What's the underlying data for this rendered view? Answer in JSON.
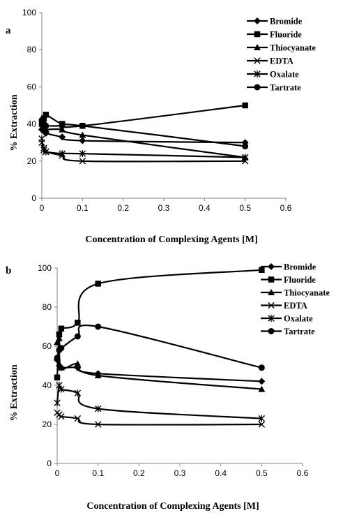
{
  "chart_data": [
    {
      "type": "line",
      "panel_label": "a",
      "xlabel": "Concentration of Complexing Agents [M]",
      "ylabel": "% Extraction",
      "xlim": [
        0,
        0.6
      ],
      "ylim": [
        0,
        100
      ],
      "xticks": [
        0,
        0.1,
        0.2,
        0.3,
        0.4,
        0.5,
        0.6
      ],
      "xtick_labels": [
        "0",
        "0.1",
        "0.2",
        "0.3",
        "0.4",
        "0.5",
        "0.6"
      ],
      "yticks": [
        0,
        20,
        40,
        60,
        80,
        100
      ],
      "ytick_labels": [
        "0",
        "20",
        "40",
        "60",
        "80",
        "100"
      ],
      "grid": false,
      "legend_position": "top-right",
      "series": [
        {
          "name": "Bromide",
          "marker": "diamond",
          "x": [
            0,
            0.005,
            0.01,
            0.05,
            0.1,
            0.5
          ],
          "y": [
            37,
            36,
            35,
            33,
            31,
            30
          ]
        },
        {
          "name": "Fluoride",
          "marker": "square",
          "x": [
            0,
            0.005,
            0.01,
            0.05,
            0.1,
            0.5
          ],
          "y": [
            40,
            43,
            45,
            40,
            39,
            50
          ]
        },
        {
          "name": "Thiocyanate",
          "marker": "triangle",
          "x": [
            0,
            0.005,
            0.01,
            0.05,
            0.1,
            0.5
          ],
          "y": [
            38,
            37,
            37,
            37,
            34,
            22
          ]
        },
        {
          "name": "EDTA",
          "marker": "x",
          "x": [
            0,
            0.005,
            0.01,
            0.05,
            0.1,
            0.5
          ],
          "y": [
            30,
            27,
            25,
            23,
            20,
            20
          ]
        },
        {
          "name": "Oxalate",
          "marker": "asterisk",
          "x": [
            0,
            0.005,
            0.01,
            0.05,
            0.1,
            0.5
          ],
          "y": [
            32,
            26,
            25,
            24,
            24,
            22
          ]
        },
        {
          "name": "Tartrate",
          "marker": "circle",
          "x": [
            0,
            0.005,
            0.01,
            0.05,
            0.1,
            0.5
          ],
          "y": [
            42,
            40,
            39,
            39,
            39,
            28
          ]
        }
      ]
    },
    {
      "type": "line",
      "panel_label": "b",
      "xlabel": "Concentration of Complexing Agents [M]",
      "ylabel": "% Extraction",
      "xlim": [
        0,
        0.6
      ],
      "ylim": [
        0,
        100
      ],
      "xticks": [
        0,
        0.1,
        0.2,
        0.3,
        0.4,
        0.5,
        0.6
      ],
      "xtick_labels": [
        "0",
        "0.1",
        "0.2",
        "0.3",
        "0.4",
        "0.5",
        "0.6"
      ],
      "yticks": [
        0,
        20,
        40,
        60,
        80,
        100
      ],
      "ytick_labels": [
        "0",
        "20",
        "40",
        "60",
        "80",
        "100"
      ],
      "grid": false,
      "legend_position": "top-right",
      "series": [
        {
          "name": "Bromide",
          "marker": "diamond",
          "x": [
            0,
            0.005,
            0.01,
            0.05,
            0.1,
            0.5
          ],
          "y": [
            53,
            50,
            49,
            49,
            46,
            42
          ]
        },
        {
          "name": "Fluoride",
          "marker": "square",
          "x": [
            0,
            0.005,
            0.01,
            0.05,
            0.1,
            0.5
          ],
          "y": [
            44,
            66,
            69,
            72,
            92,
            99
          ]
        },
        {
          "name": "Thiocyanate",
          "marker": "triangle",
          "x": [
            0,
            0.005,
            0.01,
            0.05,
            0.1,
            0.5
          ],
          "y": [
            62,
            64,
            49,
            51,
            45,
            38
          ]
        },
        {
          "name": "EDTA",
          "marker": "x",
          "x": [
            0,
            0.005,
            0.01,
            0.05,
            0.1,
            0.5
          ],
          "y": [
            26,
            25,
            24,
            23,
            20,
            20
          ]
        },
        {
          "name": "Oxalate",
          "marker": "asterisk",
          "x": [
            0,
            0.005,
            0.01,
            0.05,
            0.1,
            0.5
          ],
          "y": [
            31,
            40,
            38,
            36,
            28,
            23
          ]
        },
        {
          "name": "Tartrate",
          "marker": "circle",
          "x": [
            0,
            0.005,
            0.01,
            0.05,
            0.1,
            0.5
          ],
          "y": [
            54,
            58,
            59,
            65,
            70,
            49
          ]
        }
      ]
    }
  ]
}
